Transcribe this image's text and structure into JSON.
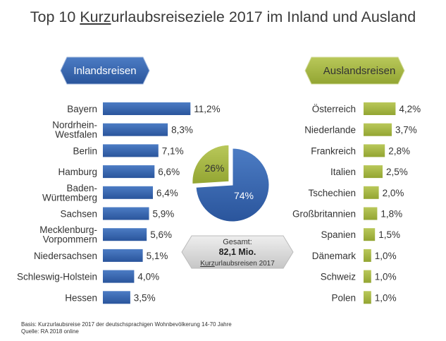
{
  "title": {
    "part1": "Top 10 ",
    "underlined": "Kurz",
    "part2": "urlaubsreiseziele 2017 im Inland und Ausland"
  },
  "chart_data": [
    {
      "type": "bar",
      "orientation": "horizontal",
      "label": "Inlandsreisen",
      "color": "#2e5fa8",
      "categories": [
        [
          "Bayern"
        ],
        [
          "Nordrhein-",
          "Westfalen"
        ],
        [
          "Berlin"
        ],
        [
          "Hamburg"
        ],
        [
          "Baden-",
          "Württemberg"
        ],
        [
          "Sachsen"
        ],
        [
          "Mecklenburg-",
          "Vorpommern"
        ],
        [
          "Niedersachsen"
        ],
        [
          "Schleswig-Holstein"
        ],
        [
          "Hessen"
        ]
      ],
      "values": [
        11.2,
        8.3,
        7.1,
        6.6,
        6.4,
        5.9,
        5.6,
        5.1,
        4.0,
        3.5
      ],
      "value_labels": [
        "11,2%",
        "8,3%",
        "7,1%",
        "6,6%",
        "6,4%",
        "5,9%",
        "5,6%",
        "5,1%",
        "4,0%",
        "3,5%"
      ]
    },
    {
      "type": "bar",
      "orientation": "horizontal",
      "label": "Auslandsreisen",
      "color": "#a3b43b",
      "categories": [
        [
          "Österreich"
        ],
        [
          "Niederlande"
        ],
        [
          "Frankreich"
        ],
        [
          "Italien"
        ],
        [
          "Tschechien"
        ],
        [
          "Großbritannien"
        ],
        [
          "Spanien"
        ],
        [
          "Dänemark"
        ],
        [
          "Schweiz"
        ],
        [
          "Polen"
        ]
      ],
      "values": [
        4.2,
        3.7,
        2.8,
        2.5,
        2.0,
        1.8,
        1.5,
        1.0,
        1.0,
        1.0
      ],
      "value_labels": [
        "4,2%",
        "3,7%",
        "2,8%",
        "2,5%",
        "2,0%",
        "1,8%",
        "1,5%",
        "1,0%",
        "1,0%",
        "1,0%"
      ]
    },
    {
      "type": "pie",
      "slices": [
        {
          "name": "Inlandsreisen",
          "value": 74,
          "label": "74%",
          "color": "#2e5fa8"
        },
        {
          "name": "Auslandsreisen",
          "value": 26,
          "label": "26%",
          "color": "#a3b43b"
        }
      ]
    }
  ],
  "total": {
    "label": "Gesamt:",
    "value": "82,1 Mio.",
    "caption_underlined": "Kurz",
    "caption_rest": "urlaubsreisen 2017"
  },
  "footnote": {
    "line1": "Basis: Kurzurlaubsreise 2017 der deutschsprachigen Wohnbevölkerung 14-70 Jahre",
    "line2": "Quelle: RA 2018 online"
  },
  "colors": {
    "inland": "#2e5fa8",
    "ausland": "#a3b43b",
    "badge_gray": "#d4d4d4"
  }
}
